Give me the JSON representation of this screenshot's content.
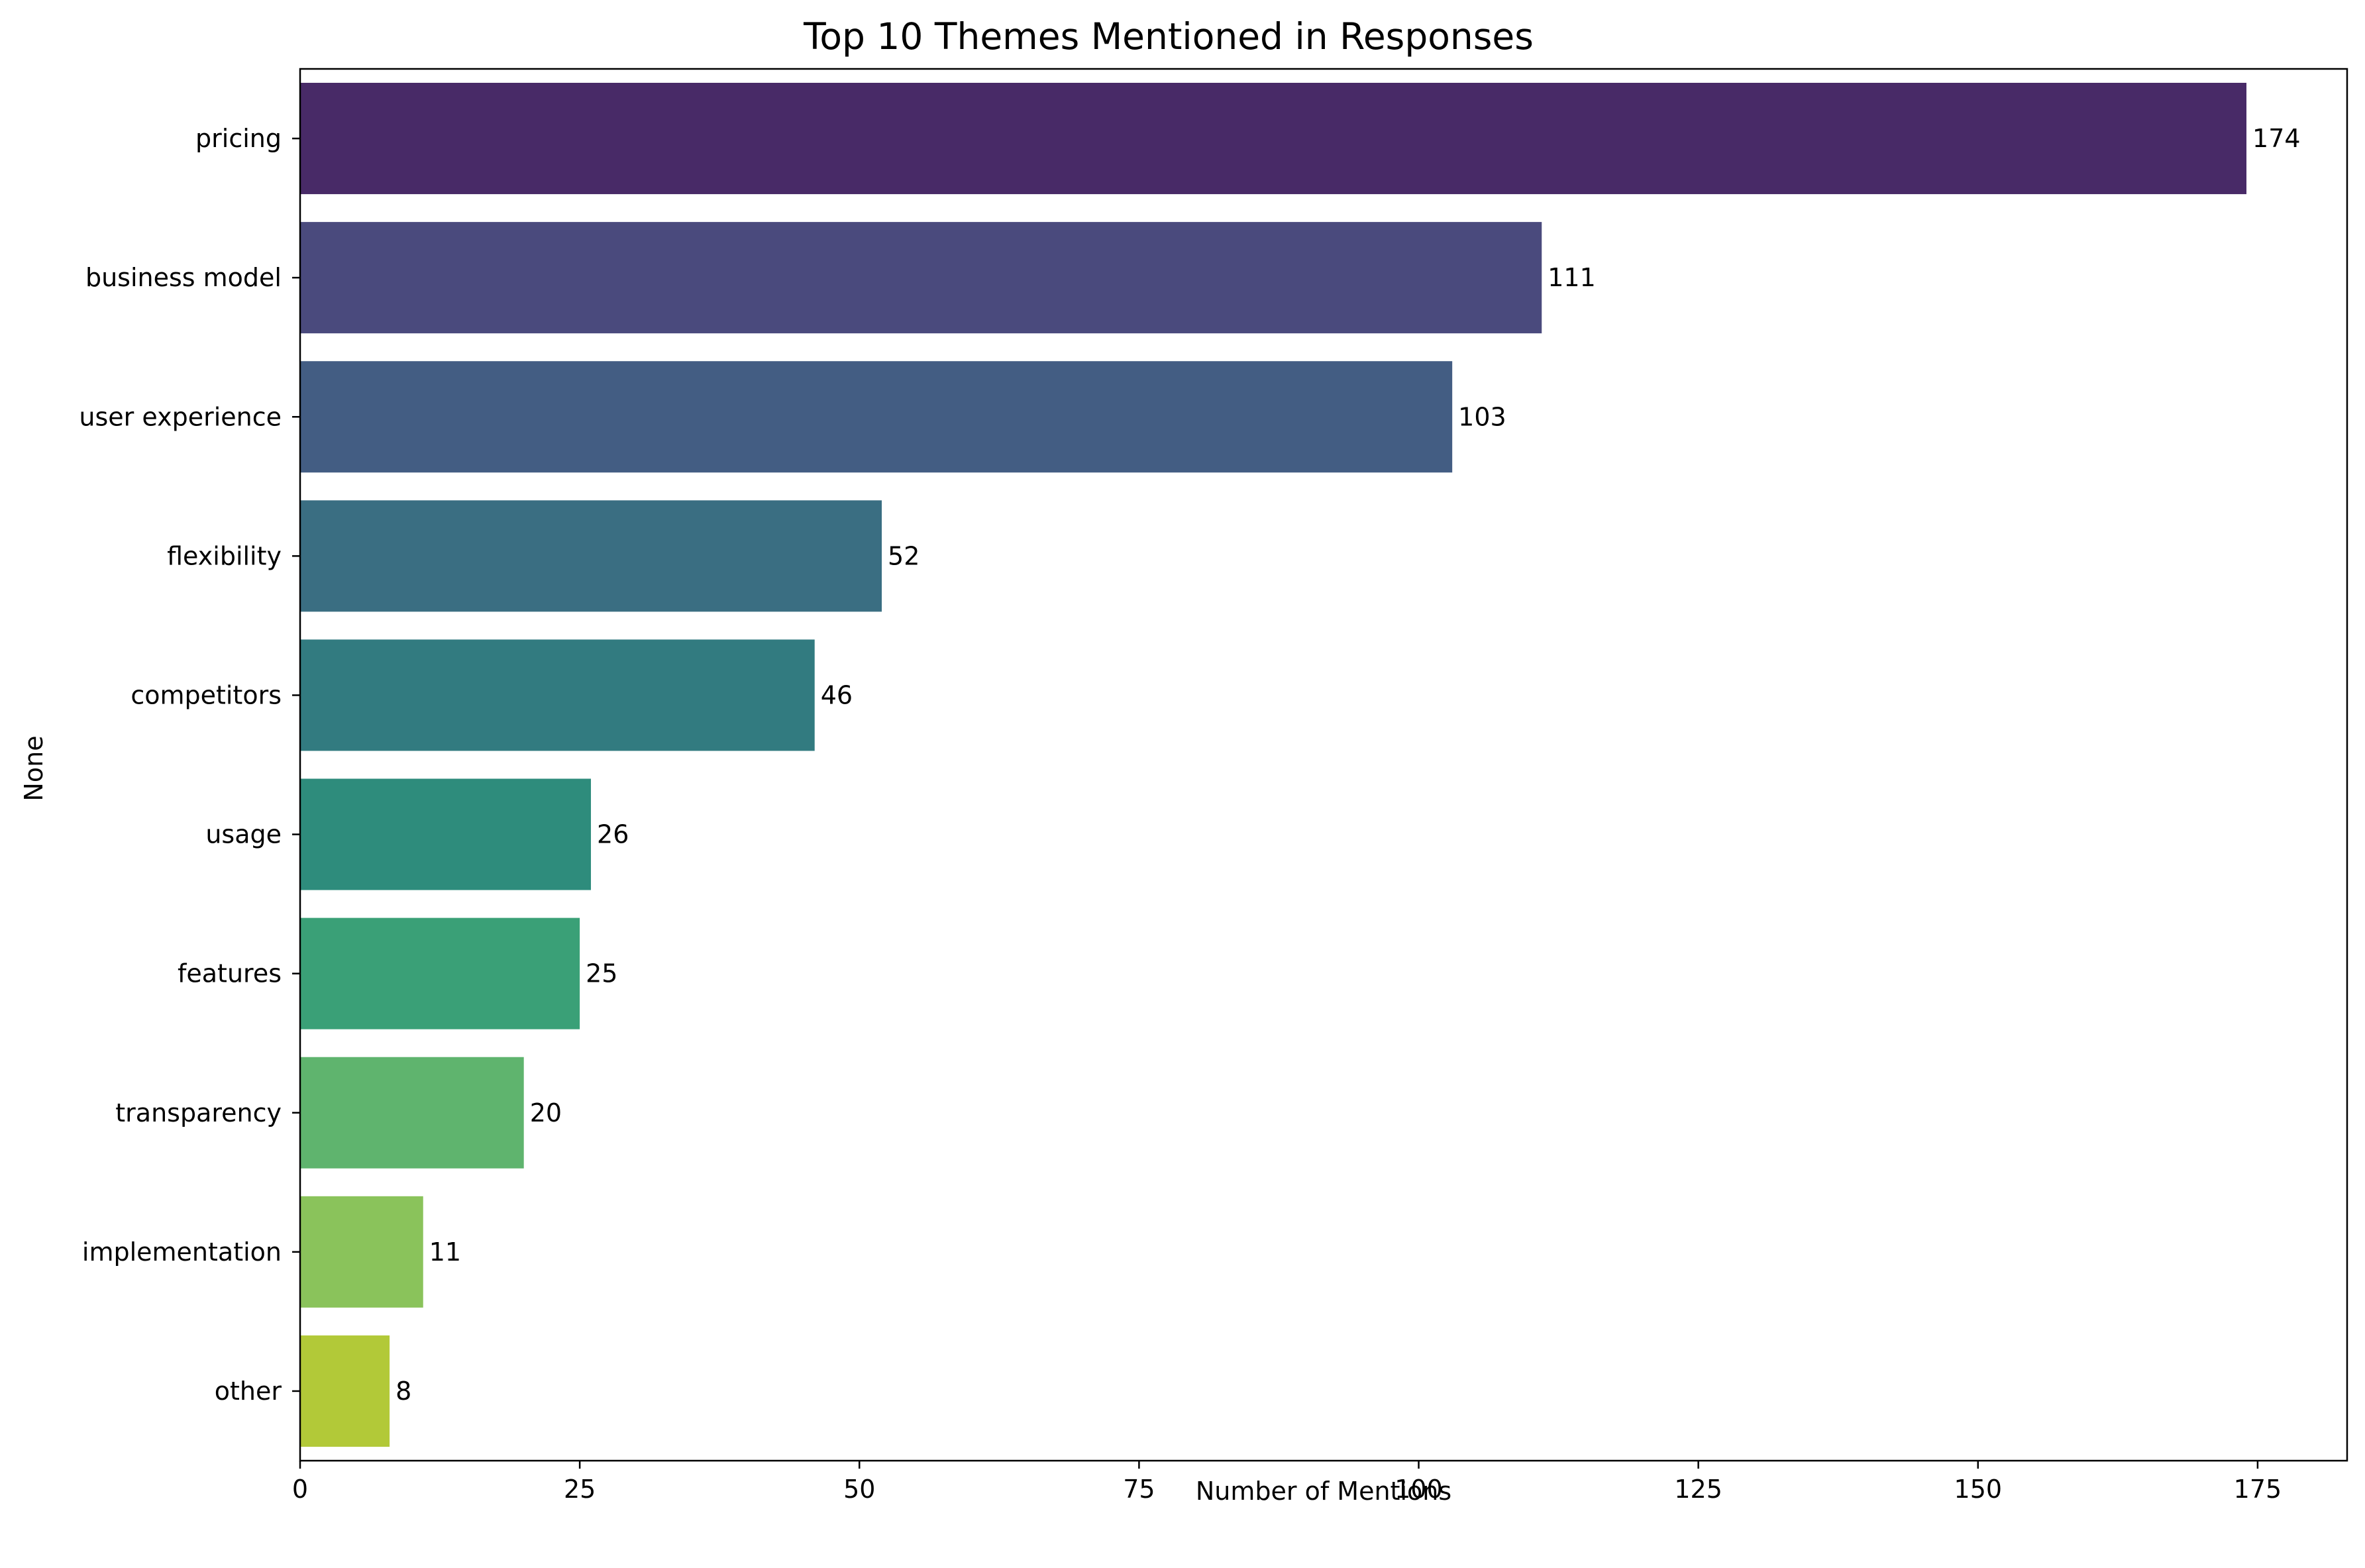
{
  "chart_data": {
    "type": "bar",
    "orientation": "horizontal",
    "title": "Top 10 Themes Mentioned in Responses",
    "xlabel": "Number of Mentions",
    "ylabel": "None",
    "categories": [
      "pricing",
      "business model",
      "user experience",
      "flexibility",
      "competitors",
      "usage",
      "features",
      "transparency",
      "implementation",
      "other"
    ],
    "values": [
      174,
      111,
      103,
      52,
      46,
      26,
      25,
      20,
      11,
      8
    ],
    "data_labels": [
      "174",
      "111",
      "103",
      "52",
      "46",
      "26",
      "25",
      "20",
      "11",
      "8"
    ],
    "colors": [
      "#482a67",
      "#4a4a7d",
      "#435d83",
      "#3a6e82",
      "#327b80",
      "#2e8c7c",
      "#3aa077",
      "#5fb46e",
      "#8ac35b",
      "#b2c938"
    ],
    "xlim": [
      0,
      183
    ],
    "xticks": [
      0,
      25,
      50,
      75,
      100,
      125,
      150,
      175
    ],
    "xtick_labels": [
      "0",
      "25",
      "50",
      "75",
      "100",
      "125",
      "150",
      "175"
    ],
    "grid": false,
    "legend": "none"
  }
}
